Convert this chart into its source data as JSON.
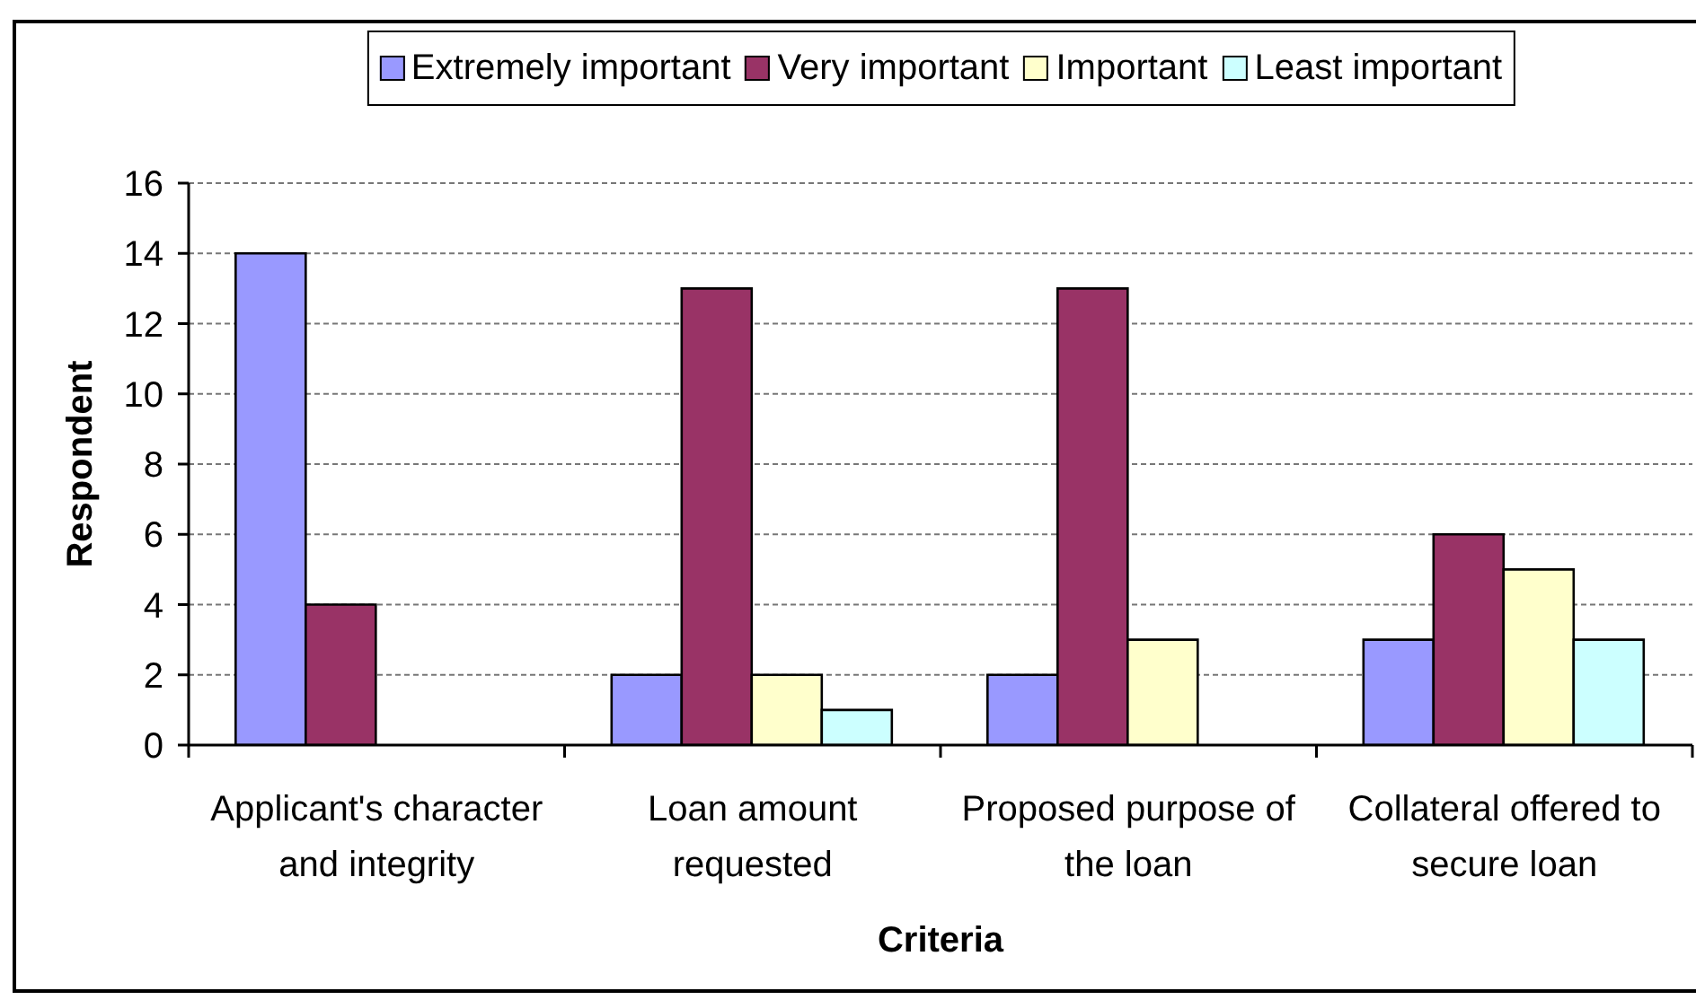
{
  "chart_data": {
    "type": "bar",
    "xlabel": "Criteria",
    "ylabel": "Respondent",
    "categories": [
      "Applicant's character and integrity",
      "Loan amount requested",
      "Proposed purpose of the loan",
      "Collateral offered to secure loan"
    ],
    "series": [
      {
        "name": "Extremely important",
        "color": "#9999ff",
        "values": [
          14,
          2,
          2,
          3
        ]
      },
      {
        "name": "Very important",
        "color": "#993366",
        "values": [
          4,
          13,
          13,
          6
        ]
      },
      {
        "name": "Important",
        "color": "#ffffcc",
        "values": [
          0,
          2,
          3,
          5
        ]
      },
      {
        "name": "Least important",
        "color": "#ccffff",
        "values": [
          0,
          1,
          0,
          3
        ]
      }
    ],
    "ylim": [
      0,
      16
    ],
    "yticks": [
      0,
      2,
      4,
      6,
      8,
      10,
      12,
      14,
      16
    ],
    "grid": "y",
    "legend": "top"
  }
}
